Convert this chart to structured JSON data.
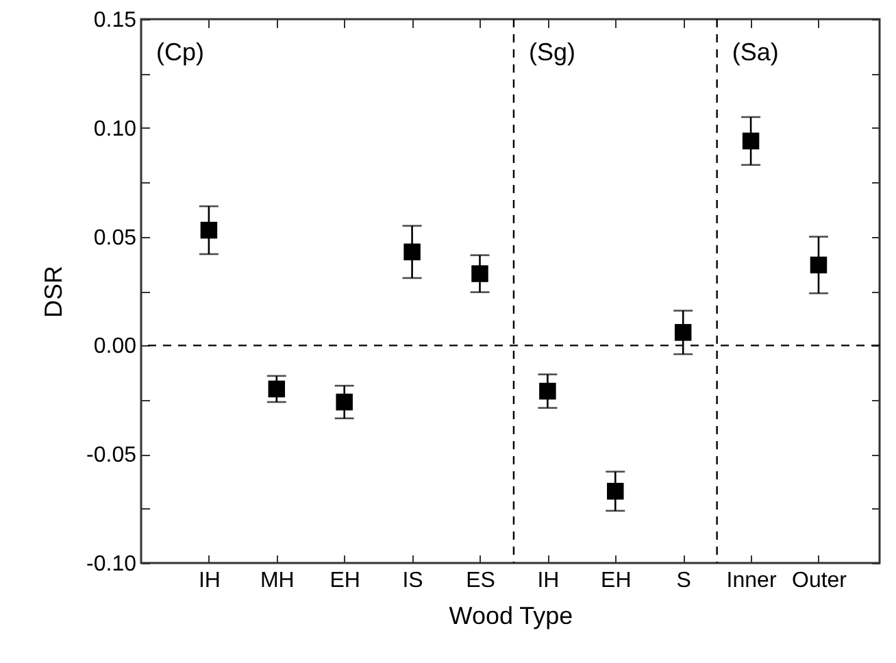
{
  "chart_data": {
    "type": "scatter",
    "xlabel": "Wood Type",
    "ylabel": "DSR",
    "categories": [
      "IH",
      "MH",
      "EH",
      "IS",
      "ES",
      "IH",
      "EH",
      "S",
      "Inner",
      "Outer"
    ],
    "series": [
      {
        "color": "#000000",
        "values": [
          0.053,
          -0.02,
          -0.026,
          0.043,
          0.033,
          -0.021,
          -0.067,
          0.006,
          0.094,
          0.037
        ],
        "errors": [
          0.011,
          0.006,
          0.0075,
          0.012,
          0.0085,
          0.0077,
          0.009,
          0.01,
          0.011,
          0.013
        ]
      }
    ],
    "ylim": [
      -0.1,
      0.15
    ],
    "yticks": [
      {
        "value": -0.1,
        "label": "-0.10"
      },
      {
        "value": -0.075,
        "label": null
      },
      {
        "value": -0.05,
        "label": "-0.05"
      },
      {
        "value": -0.025,
        "label": null
      },
      {
        "value": 0,
        "label": "0.00"
      },
      {
        "value": 0.025,
        "label": null
      },
      {
        "value": 0.05,
        "label": "0.05"
      },
      {
        "value": 0.075,
        "label": null
      },
      {
        "value": 0.1,
        "label": "0.10"
      },
      {
        "value": 0.125,
        "label": null
      },
      {
        "value": 0.15,
        "label": "0.15"
      }
    ],
    "ref_lines": [
      {
        "axis": "y",
        "value": 0,
        "line_style": "dashed"
      }
    ],
    "annotations": [
      "(Cp)",
      "(Sg)",
      "(Sa)"
    ],
    "marker": "square",
    "grid": false
  }
}
